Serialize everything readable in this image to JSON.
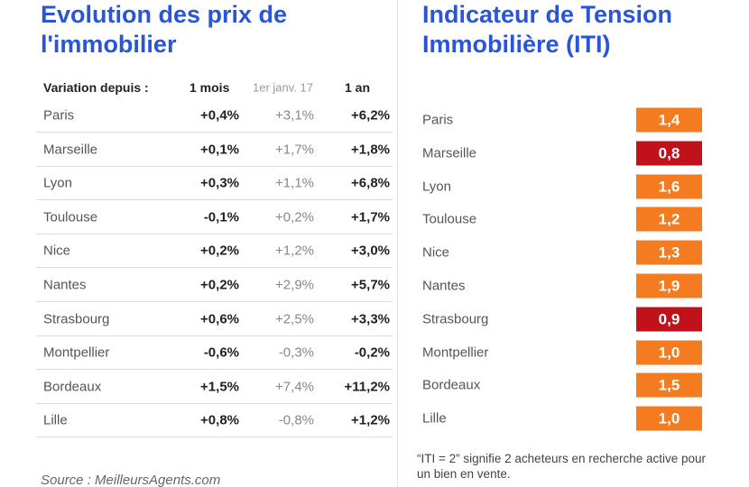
{
  "left": {
    "title": "Evolution des prix de l'immobilier",
    "header": [
      "Variation depuis :",
      "1 mois",
      "1er janv. 17",
      "1 an"
    ],
    "rows": [
      [
        "Paris",
        "+0,4%",
        "+3,1%",
        "+6,2%"
      ],
      [
        "Marseille",
        "+0,1%",
        "+1,7%",
        "+1,8%"
      ],
      [
        "Lyon",
        "+0,3%",
        "+1,1%",
        "+6,8%"
      ],
      [
        "Toulouse",
        "-0,1%",
        "+0,2%",
        "+1,7%"
      ],
      [
        "Nice",
        "+0,2%",
        "+1,2%",
        "+3,0%"
      ],
      [
        "Nantes",
        "+0,2%",
        "+2,9%",
        "+5,7%"
      ],
      [
        "Strasbourg",
        "+0,6%",
        "+2,5%",
        "+3,3%"
      ],
      [
        "Montpellier",
        "-0,6%",
        "-0,3%",
        "-0,2%"
      ],
      [
        "Bordeaux",
        "+1,5%",
        "+7,4%",
        "+11,2%"
      ],
      [
        "Lille",
        "+0,8%",
        "-0,8%",
        "+1,2%"
      ]
    ],
    "source": "Source : MeilleursAgents.com"
  },
  "right": {
    "title": "Indicateur de Tension Immobilière (ITI)",
    "rows": [
      {
        "city": "Paris",
        "value": "1,4",
        "color": "#f47b20"
      },
      {
        "city": "Marseille",
        "value": "0,8",
        "color": "#c1121c"
      },
      {
        "city": "Lyon",
        "value": "1,6",
        "color": "#f47b20"
      },
      {
        "city": "Toulouse",
        "value": "1,2",
        "color": "#f47b20"
      },
      {
        "city": "Nice",
        "value": "1,3",
        "color": "#f47b20"
      },
      {
        "city": "Nantes",
        "value": "1,9",
        "color": "#f47b20"
      },
      {
        "city": "Strasbourg",
        "value": "0,9",
        "color": "#c1121c"
      },
      {
        "city": "Montpellier",
        "value": "1,0",
        "color": "#f47b20"
      },
      {
        "city": "Bordeaux",
        "value": "1,5",
        "color": "#f47b20"
      },
      {
        "city": "Lille",
        "value": "1,0",
        "color": "#f47b20"
      }
    ],
    "note": "“ITI = 2” signifie 2 acheteurs en recherche active pour un bien en vente."
  }
}
